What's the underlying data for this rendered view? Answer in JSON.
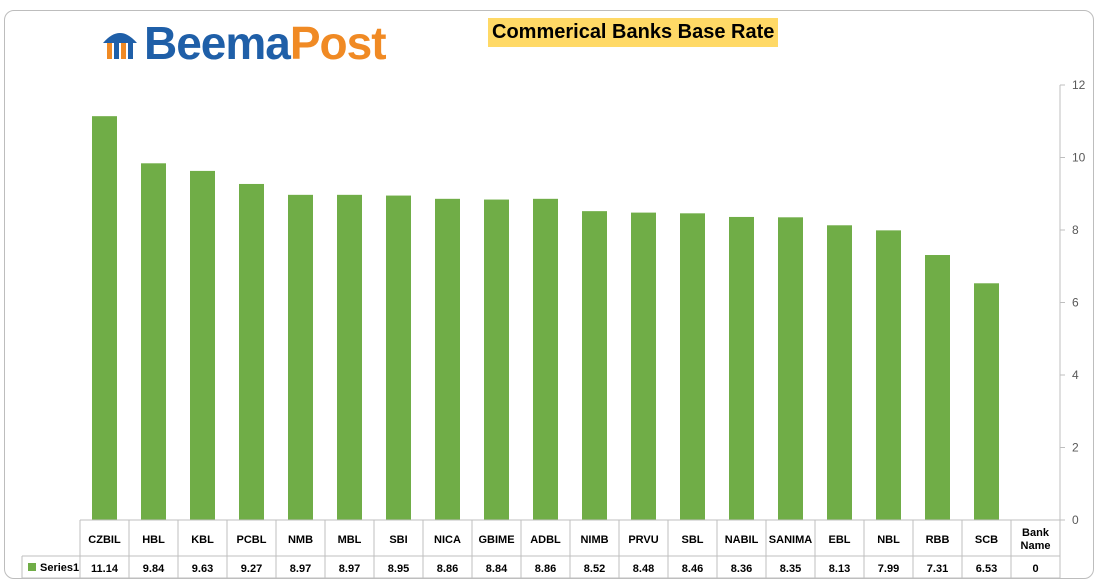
{
  "logo": {
    "text_part1": "Beema",
    "text_part2": "Post"
  },
  "chart_data": {
    "type": "bar",
    "title": "Commerical Banks Base Rate",
    "categories": [
      "CZBIL",
      "HBL",
      "KBL",
      "PCBL",
      "NMB",
      "MBL",
      "SBI",
      "NICA",
      "GBIME",
      "ADBL",
      "NIMB",
      "PRVU",
      "SBL",
      "NABIL",
      "SANIMA",
      "EBL",
      "NBL",
      "RBB",
      "SCB",
      "Bank Name"
    ],
    "series": [
      {
        "name": "Series1",
        "values": [
          11.14,
          9.84,
          9.63,
          9.27,
          8.97,
          8.97,
          8.95,
          8.86,
          8.84,
          8.86,
          8.52,
          8.48,
          8.46,
          8.36,
          8.35,
          8.13,
          7.99,
          7.31,
          6.53,
          0
        ]
      }
    ],
    "value_labels": [
      "11.14",
      "9.84",
      "9.63",
      "9.27",
      "8.97",
      "8.97",
      "8.95",
      "8.86",
      "8.84",
      "8.86",
      "8.52",
      "8.48",
      "8.46",
      "8.36",
      "8.35",
      "8.13",
      "7.99",
      "7.31",
      "6.53",
      "0"
    ],
    "ylim": [
      0,
      12
    ],
    "yticks": [
      0,
      2,
      4,
      6,
      8,
      10,
      12
    ],
    "y_axis_side": "right",
    "grid": false,
    "legend": "data-table-left",
    "bar_color": "#70ad47"
  }
}
